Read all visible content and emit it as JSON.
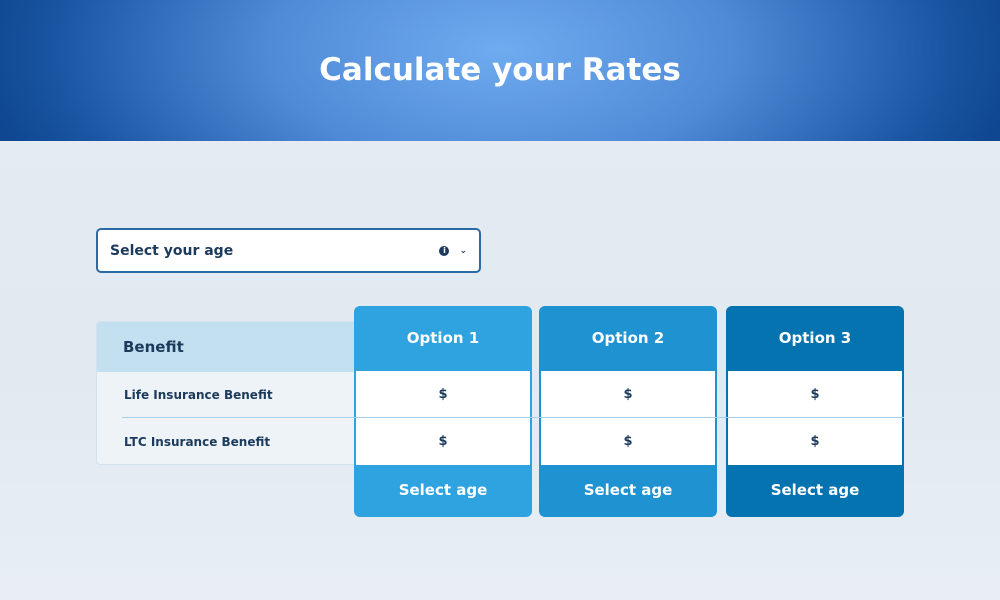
{
  "header": {
    "title": "Calculate your Rates"
  },
  "age_select": {
    "placeholder": "Select your age",
    "info_icon": "info-icon",
    "chevron_icon": "chevron-down-icon"
  },
  "benefit_table": {
    "header": "Benefit",
    "rows": [
      "Life Insurance Benefit",
      "LTC Insurance Benefit"
    ]
  },
  "options": [
    {
      "title": "Option 1",
      "values": [
        "$",
        "$"
      ],
      "button": "Select age",
      "color": "#2ea3e0"
    },
    {
      "title": "Option 2",
      "values": [
        "$",
        "$"
      ],
      "button": "Select age",
      "color": "#1f93d2"
    },
    {
      "title": "Option 3",
      "values": [
        "$",
        "$"
      ],
      "button": "Select age",
      "color": "#0573b0"
    }
  ]
}
